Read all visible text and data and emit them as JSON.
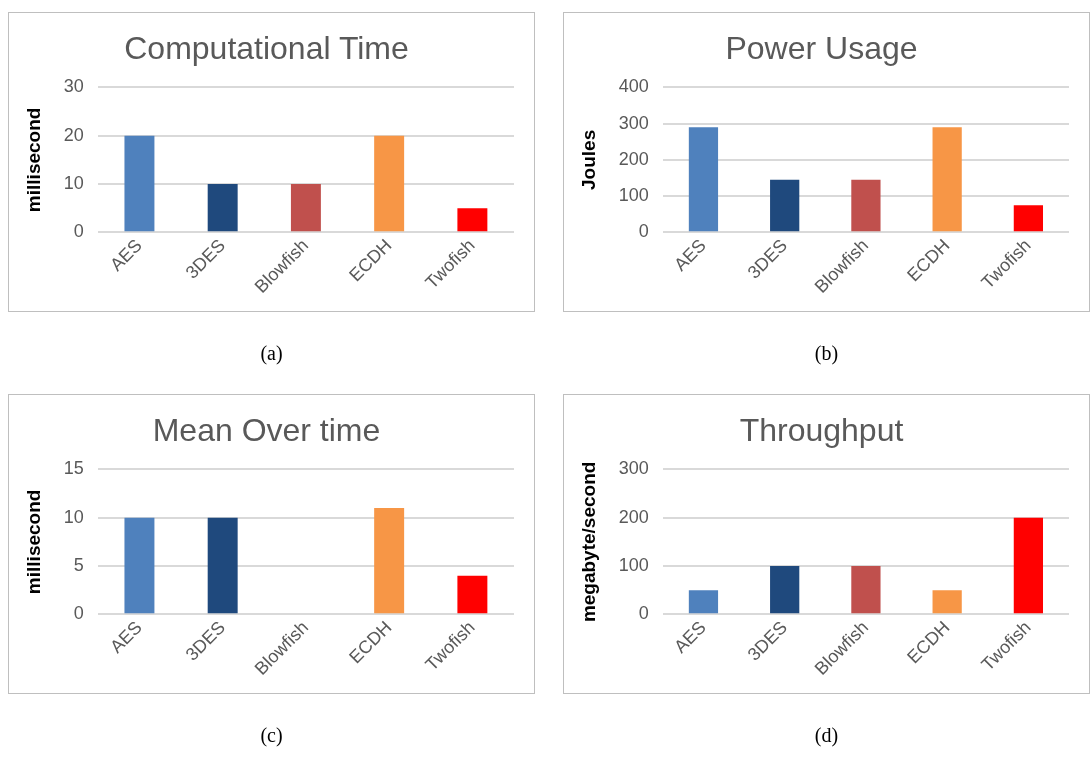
{
  "chart_data": [
    {
      "type": "bar",
      "title": "Computational Time",
      "ylabel": "millisecond",
      "categories": [
        "AES",
        "3DES",
        "Blowfish",
        "ECDH",
        "Twofish"
      ],
      "values": [
        20,
        10,
        10,
        20,
        5
      ],
      "colors": [
        "#4f81bd",
        "#1f497d",
        "#c0504d",
        "#f79646",
        "#ff0000"
      ],
      "ylim": [
        0,
        30
      ],
      "yticks": [
        0,
        10,
        20,
        30
      ],
      "grid": "y",
      "annotations": [
        "(a)"
      ]
    },
    {
      "type": "bar",
      "title": "Power Usage",
      "ylabel": "Joules",
      "categories": [
        "AES",
        "3DES",
        "Blowfish",
        "ECDH",
        "Twofish"
      ],
      "values": [
        290,
        145,
        145,
        290,
        75
      ],
      "colors": [
        "#4f81bd",
        "#1f497d",
        "#c0504d",
        "#f79646",
        "#ff0000"
      ],
      "ylim": [
        0,
        400
      ],
      "yticks": [
        0,
        100,
        200,
        300,
        400
      ],
      "grid": "y",
      "annotations": [
        "(b)"
      ]
    },
    {
      "type": "bar",
      "title": "Mean Over time",
      "ylabel": "millisecond",
      "categories": [
        "AES",
        "3DES",
        "Blowfish",
        "ECDH",
        "Twofish"
      ],
      "values": [
        10,
        10,
        0,
        11,
        4
      ],
      "colors": [
        "#4f81bd",
        "#1f497d",
        "#c0504d",
        "#f79646",
        "#ff0000"
      ],
      "ylim": [
        0,
        15
      ],
      "yticks": [
        0,
        5,
        10,
        15
      ],
      "grid": "y",
      "annotations": [
        "(c)"
      ]
    },
    {
      "type": "bar",
      "title": "Throughput",
      "ylabel": "megabyte/second",
      "categories": [
        "AES",
        "3DES",
        "Blowfish",
        "ECDH",
        "Twofish"
      ],
      "values": [
        50,
        100,
        100,
        50,
        200
      ],
      "colors": [
        "#4f81bd",
        "#1f497d",
        "#c0504d",
        "#f79646",
        "#ff0000"
      ],
      "ylim": [
        0,
        300
      ],
      "yticks": [
        0,
        100,
        200,
        300
      ],
      "grid": "y",
      "annotations": [
        "(d)"
      ]
    }
  ]
}
